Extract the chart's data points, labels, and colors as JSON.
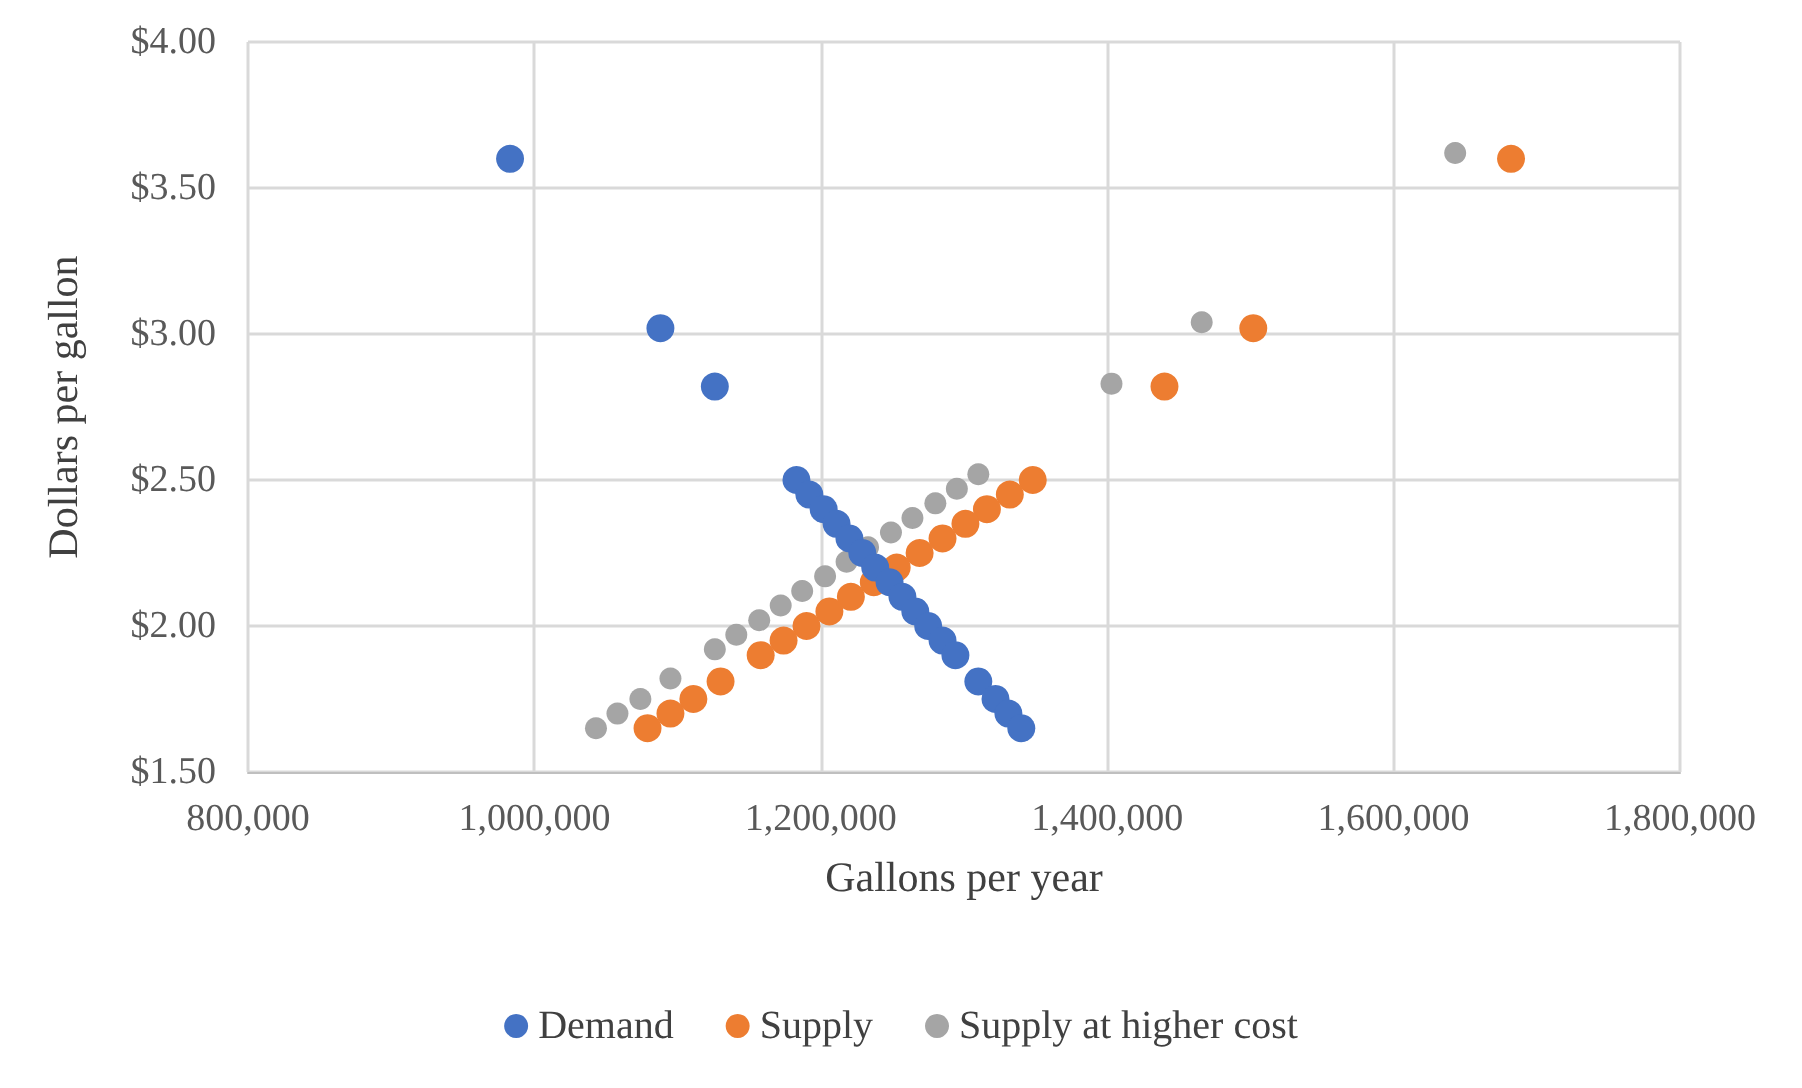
{
  "chart_data": {
    "type": "scatter",
    "xlabel": "Gallons per year",
    "ylabel": "Dollars per gallon",
    "xlim": [
      800000,
      1800000
    ],
    "xticks": [
      {
        "value": 800000,
        "label": "800,000"
      },
      {
        "value": 1000000,
        "label": "1,000,000"
      },
      {
        "value": 1200000,
        "label": "1,200,000"
      },
      {
        "value": 1400000,
        "label": "1,400,000"
      },
      {
        "value": 1600000,
        "label": "1,600,000"
      },
      {
        "value": 1800000,
        "label": "1,800,000"
      }
    ],
    "ylim": [
      1.5,
      4
    ],
    "yticks": [
      {
        "value": 1.5,
        "label": "$1.50"
      },
      {
        "value": 2,
        "label": "$2.00"
      },
      {
        "value": 2.5,
        "label": "$2.50"
      },
      {
        "value": 3,
        "label": "$3.00"
      },
      {
        "value": 3.5,
        "label": "$3.50"
      },
      {
        "value": 4,
        "label": "$4.00"
      }
    ],
    "grid": true,
    "legend": "bottom",
    "marker": "circle",
    "series": [
      {
        "name": "Demand",
        "color": "#4472c4",
        "x": [
          983000,
          1088000,
          1126000,
          1183000,
          1192000,
          1202000,
          1211000,
          1220000,
          1229000,
          1238000,
          1248000,
          1257000,
          1266000,
          1275000,
          1285000,
          1294000,
          1310000,
          1322000,
          1331000,
          1340000
        ],
        "values": [
          3.6,
          3.02,
          2.82,
          2.5,
          2.45,
          2.4,
          2.35,
          2.3,
          2.25,
          2.2,
          2.15,
          2.1,
          2.05,
          2.0,
          1.95,
          1.9,
          1.81,
          1.75,
          1.7,
          1.65
        ]
      },
      {
        "name": "Supply",
        "color": "#ed7d31",
        "x": [
          1682000,
          1502000,
          1440000,
          1348000,
          1332000,
          1316000,
          1301000,
          1285000,
          1269000,
          1253000,
          1237000,
          1221000,
          1206000,
          1190000,
          1174000,
          1158000,
          1130000,
          1111000,
          1095000,
          1079000
        ],
        "values": [
          3.6,
          3.02,
          2.82,
          2.5,
          2.45,
          2.4,
          2.35,
          2.3,
          2.25,
          2.2,
          2.15,
          2.1,
          2.05,
          2.0,
          1.95,
          1.9,
          1.81,
          1.75,
          1.7,
          1.65
        ]
      },
      {
        "name": "Supply at higher cost",
        "color": "#a5a5a5",
        "x": [
          1643000,
          1466000,
          1403000,
          1310000,
          1295000,
          1280000,
          1264000,
          1249000,
          1233000,
          1218000,
          1203000,
          1187000,
          1172000,
          1157000,
          1141000,
          1126000,
          1095000,
          1074000,
          1058000,
          1043000
        ],
        "values": [
          3.62,
          3.04,
          2.83,
          2.52,
          2.47,
          2.42,
          2.37,
          2.32,
          2.27,
          2.22,
          2.17,
          2.12,
          2.07,
          2.02,
          1.97,
          1.92,
          1.82,
          1.75,
          1.7,
          1.65
        ]
      }
    ]
  }
}
